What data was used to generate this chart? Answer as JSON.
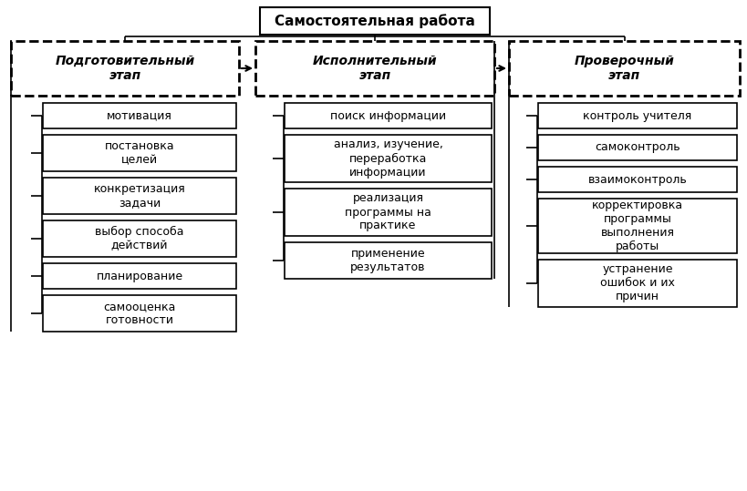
{
  "title": "Самостоятельная работа",
  "col1_header": "Подготовительный\nэтап",
  "col2_header": "Исполнительный\nэтап",
  "col3_header": "Проверочный\nэтап",
  "col1_items": [
    "мотивация",
    "постановка\nцелей",
    "конкретизация\nзадачи",
    "выбор способа\nдействий",
    "планирование",
    "самооценка\nготовности"
  ],
  "col2_items": [
    "поиск информации",
    "анализ, изучение,\nпереработка\nинформации",
    "реализация\nпрограммы на\nпрактике",
    "применение\nрезультатов"
  ],
  "col3_items": [
    "контроль учителя",
    "самоконтроль",
    "взаимоконтроль",
    "корректировка\nпрограммы\nвыполнения\nработы",
    "устранение\nошибок и их\nпричин"
  ],
  "bg_color": "#ffffff",
  "text_color": "#000000",
  "font_size": 9,
  "header_font_size": 10
}
